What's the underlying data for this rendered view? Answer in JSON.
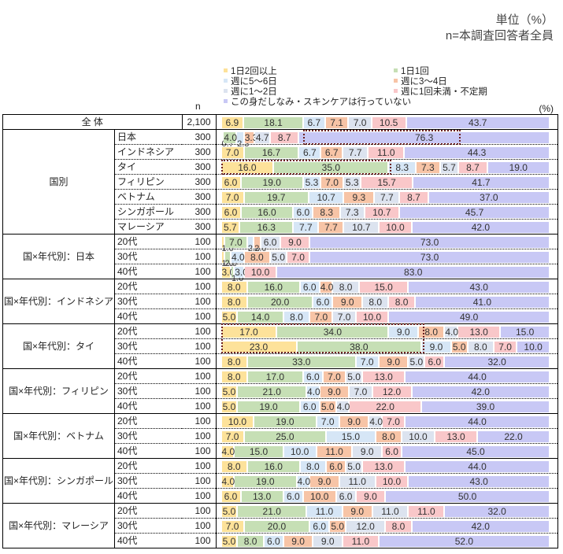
{
  "unit_label": "単位（%）",
  "base_label": "n=本調査回答者全員",
  "n_header": "n",
  "pct_header": "(%)",
  "colors": [
    "#fde29a",
    "#c6dfb5",
    "#d6e6f6",
    "#f7c4a6",
    "#dce3ef",
    "#f9c7c9",
    "#c8c8f5"
  ],
  "legend": [
    {
      "label": "1日2回以上",
      "color": "#fde29a"
    },
    {
      "label": "1日1回",
      "color": "#c6dfb5"
    },
    {
      "label": "週に5～6日",
      "color": "#d6e6f6"
    },
    {
      "label": "週に3～4日",
      "color": "#f7c4a6"
    },
    {
      "label": "週に1～2日",
      "color": "#dce3ef"
    },
    {
      "label": "週に1回未満・不定期",
      "color": "#f9c7c9"
    },
    {
      "label": "この身だしなみ・スキンケアは行っていない",
      "color": "#c8c8f5"
    }
  ],
  "chart_data": {
    "type": "bar",
    "orientation": "horizontal-stacked-100",
    "title": "",
    "xlabel": "(%)",
    "series_names": [
      "1日2回以上",
      "1日1回",
      "週に5～6日",
      "週に3～4日",
      "週に1～2日",
      "週に1回未満・不定期",
      "この身だしなみ・スキンケアは行っていない"
    ],
    "rows": [
      {
        "group": "全 体",
        "sub": "",
        "n": "2,100",
        "values": [
          6.9,
          18.1,
          6.7,
          7.1,
          7.0,
          10.5,
          43.7
        ]
      },
      {
        "group": "国別",
        "sub": "日本",
        "n": "300",
        "values": [
          0.7,
          4.0,
          2.3,
          3.3,
          4.7,
          8.7,
          76.3
        ]
      },
      {
        "group": "国別",
        "sub": "インドネシア",
        "n": "300",
        "values": [
          7.0,
          16.7,
          6.7,
          6.7,
          7.7,
          11.0,
          44.3
        ]
      },
      {
        "group": "国別",
        "sub": "タイ",
        "n": "300",
        "values": [
          16.0,
          35.0,
          8.3,
          7.3,
          5.7,
          8.7,
          19.0
        ]
      },
      {
        "group": "国別",
        "sub": "フィリピン",
        "n": "300",
        "values": [
          6.0,
          19.0,
          5.3,
          7.0,
          5.3,
          15.7,
          41.7
        ]
      },
      {
        "group": "国別",
        "sub": "ベトナム",
        "n": "300",
        "values": [
          7.0,
          19.7,
          10.7,
          9.3,
          7.7,
          8.7,
          37.0
        ]
      },
      {
        "group": "国別",
        "sub": "シンガポール",
        "n": "300",
        "values": [
          6.0,
          16.0,
          6.0,
          8.3,
          7.3,
          10.7,
          45.7
        ]
      },
      {
        "group": "国別",
        "sub": "マレーシア",
        "n": "300",
        "values": [
          5.7,
          16.3,
          7.7,
          7.7,
          10.7,
          10.0,
          42.0
        ]
      },
      {
        "group": "国×年代別：日本",
        "sub": "20代",
        "n": "100",
        "values": [
          1.0,
          7.0,
          2.0,
          2.0,
          6.0,
          9.0,
          73.0
        ]
      },
      {
        "group": "国×年代別：日本",
        "sub": "30代",
        "n": "100",
        "values": [
          1.0,
          2.0,
          4.0,
          8.0,
          5.0,
          7.0,
          73.0
        ]
      },
      {
        "group": "国×年代別：日本",
        "sub": "40代",
        "n": "100",
        "values": [
          3.0,
          1.0,
          3.0,
          0,
          0,
          10.0,
          83.0
        ]
      },
      {
        "group": "国×年代別：インドネシア",
        "sub": "20代",
        "n": "100",
        "values": [
          8.0,
          16.0,
          6.0,
          4.0,
          8.0,
          15.0,
          43.0
        ]
      },
      {
        "group": "国×年代別：インドネシア",
        "sub": "30代",
        "n": "100",
        "values": [
          8.0,
          20.0,
          6.0,
          9.0,
          8.0,
          8.0,
          41.0
        ]
      },
      {
        "group": "国×年代別：インドネシア",
        "sub": "40代",
        "n": "100",
        "values": [
          5.0,
          14.0,
          8.0,
          7.0,
          7.0,
          10.0,
          49.0
        ]
      },
      {
        "group": "国×年代別：タイ",
        "sub": "20代",
        "n": "100",
        "values": [
          17.0,
          34.0,
          9.0,
          8.0,
          4.0,
          13.0,
          15.0
        ]
      },
      {
        "group": "国×年代別：タイ",
        "sub": "30代",
        "n": "100",
        "values": [
          23.0,
          38.0,
          9.0,
          5.0,
          8.0,
          7.0,
          10.0
        ]
      },
      {
        "group": "国×年代別：タイ",
        "sub": "40代",
        "n": "100",
        "values": [
          8.0,
          33.0,
          7.0,
          9.0,
          5.0,
          6.0,
          32.0
        ]
      },
      {
        "group": "国×年代別：フィリピン",
        "sub": "20代",
        "n": "100",
        "values": [
          8.0,
          17.0,
          6.0,
          7.0,
          5.0,
          13.0,
          44.0
        ]
      },
      {
        "group": "国×年代別：フィリピン",
        "sub": "30代",
        "n": "100",
        "values": [
          5.0,
          21.0,
          4.0,
          9.0,
          7.0,
          12.0,
          42.0
        ]
      },
      {
        "group": "国×年代別：フィリピン",
        "sub": "40代",
        "n": "100",
        "values": [
          5.0,
          19.0,
          6.0,
          5.0,
          4.0,
          22.0,
          39.0
        ]
      },
      {
        "group": "国×年代別：ベトナム",
        "sub": "20代",
        "n": "100",
        "values": [
          10.0,
          19.0,
          7.0,
          9.0,
          4.0,
          7.0,
          44.0
        ]
      },
      {
        "group": "国×年代別：ベトナム",
        "sub": "30代",
        "n": "100",
        "values": [
          7.0,
          25.0,
          15.0,
          8.0,
          10.0,
          13.0,
          22.0
        ]
      },
      {
        "group": "国×年代別：ベトナム",
        "sub": "40代",
        "n": "100",
        "values": [
          4.0,
          15.0,
          10.0,
          11.0,
          9.0,
          6.0,
          45.0
        ]
      },
      {
        "group": "国×年代別：シンガポール",
        "sub": "20代",
        "n": "100",
        "values": [
          8.0,
          16.0,
          8.0,
          6.0,
          5.0,
          13.0,
          44.0
        ]
      },
      {
        "group": "国×年代別：シンガポール",
        "sub": "30代",
        "n": "100",
        "values": [
          4.0,
          19.0,
          4.0,
          9.0,
          11.0,
          10.0,
          43.0
        ]
      },
      {
        "group": "国×年代別：シンガポール",
        "sub": "40代",
        "n": "100",
        "values": [
          6.0,
          13.0,
          6.0,
          10.0,
          6.0,
          9.0,
          50.0
        ]
      },
      {
        "group": "国×年代別：マレーシア",
        "sub": "20代",
        "n": "100",
        "values": [
          5.0,
          21.0,
          11.0,
          9.0,
          11.0,
          11.0,
          32.0
        ]
      },
      {
        "group": "国×年代別：マレーシア",
        "sub": "30代",
        "n": "100",
        "values": [
          7.0,
          20.0,
          6.0,
          5.0,
          12.0,
          8.0,
          42.0
        ]
      },
      {
        "group": "国×年代別：マレーシア",
        "sub": "40代",
        "n": "100",
        "values": [
          5.0,
          8.0,
          6.0,
          9.0,
          9.0,
          11.0,
          52.0
        ]
      }
    ],
    "highlights": [
      {
        "row": 1,
        "from_pct": 25.0,
        "to_pct": 72.0,
        "note": "日本 76.3 highlighted"
      },
      {
        "row": 3,
        "from_pct": 0,
        "to_pct": 51.0,
        "note": "タイ 16.0+35.0 highlighted"
      },
      {
        "row": 14,
        "rows_span": 2,
        "from_pct": 0,
        "to_pct": 61.0,
        "note": "タイ20代/30代 highlighted"
      }
    ],
    "xlim": [
      0,
      100
    ],
    "legend_position": "top"
  }
}
